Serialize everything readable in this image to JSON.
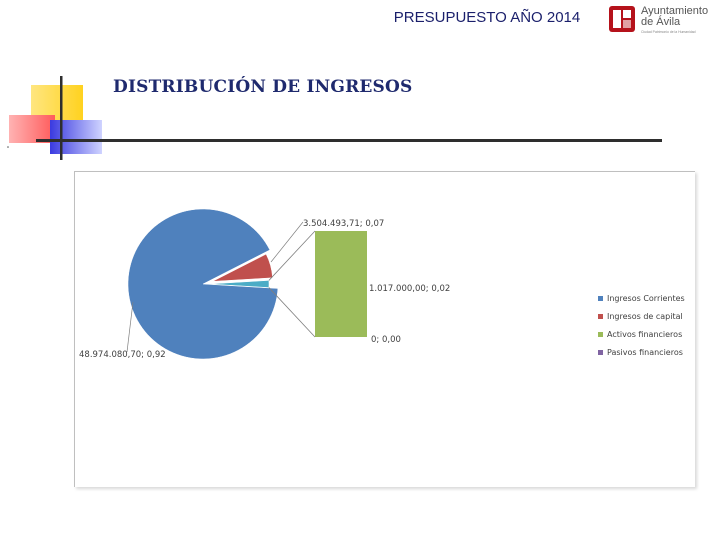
{
  "header": {
    "title": "PRESUPUESTO AÑO 2014",
    "logo_line1": "Ayuntamiento",
    "logo_line2": "de Ávila",
    "logo_tagline": "Ciudad Patrimonio de la Humanidad",
    "colors": {
      "title": "#1a1f6b",
      "logo_red": "#b5121b"
    }
  },
  "page_title": "DISTRIBUCIÓN DE INGRESOS",
  "chart_data": {
    "type": "pie",
    "variant": "pie-of-bar",
    "title": "",
    "slices": [
      {
        "name": "Ingresos Corrientes",
        "value": 48974080.7,
        "share": 0.92,
        "label": "48.974.080,70; 0,92",
        "color": "#4f81bd"
      },
      {
        "name": "Ingresos de capital",
        "value": 3504493.71,
        "share": 0.07,
        "label": "3.504.493,71; 0,07",
        "color": "#c0504d"
      },
      {
        "name": "Activos financieros",
        "value": 1017000.0,
        "share": 0.02,
        "label": "1.017.000,00; 0,02",
        "color": "#9bbb59"
      },
      {
        "name": "Pasivos financieros",
        "value": 0,
        "share": 0.0,
        "label": "0; 0,00",
        "color": "#8064a2"
      }
    ],
    "secondary_bar": [
      "Activos financieros",
      "Pasivos financieros"
    ],
    "pie_indices": [
      0,
      1
    ],
    "connector_index": 2,
    "legend": {
      "placement": "right"
    },
    "connector_color": "#4bacc6"
  }
}
